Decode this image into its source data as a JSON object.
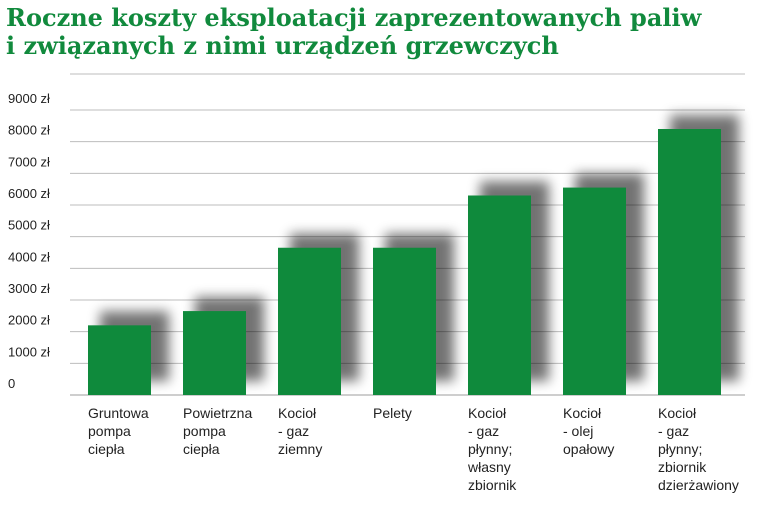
{
  "chart_data": {
    "type": "bar",
    "title_lines": [
      "Roczne koszty eksploatacji zaprezentowanych paliw",
      "i związanych z nimi urządzeń grzewczych"
    ],
    "y_ticks": [
      "0",
      "1000 zł",
      "2000 zł",
      "3000 zł",
      "4000 zł",
      "5000 zł",
      "6000 zł",
      "7000 zł",
      "8000 zł",
      "9000 zł"
    ],
    "ylim": [
      0,
      9000
    ],
    "grid": true,
    "legend": "none",
    "bar_color": "#0f8a3c",
    "categories": [
      [
        "Gruntowa",
        "pompa",
        "ciepła"
      ],
      [
        "Powietrzna",
        "pompa",
        "ciepła"
      ],
      [
        "Kocioł",
        "- gaz",
        "ziemny"
      ],
      [
        "Pelety"
      ],
      [
        "Kocioł",
        "- gaz",
        "płynny;",
        "własny",
        "zbiornik"
      ],
      [
        "Kocioł",
        "- olej",
        "opałowy"
      ],
      [
        "Kocioł",
        "- gaz",
        "płynny;",
        "zbiornik",
        "dzierżawiony"
      ]
    ],
    "values": [
      2200,
      2650,
      4650,
      4650,
      6300,
      6550,
      8400
    ]
  }
}
